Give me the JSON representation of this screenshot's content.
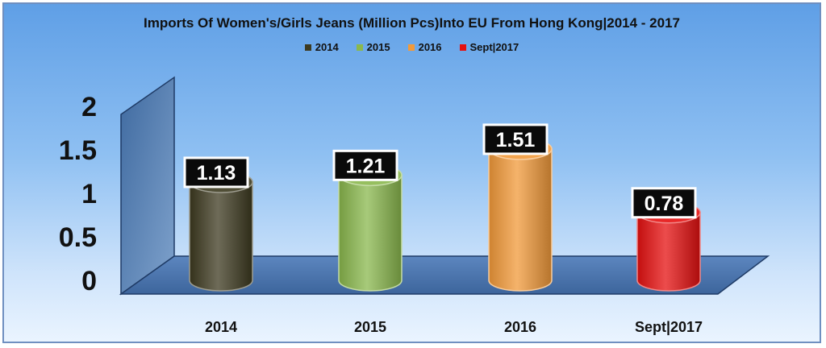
{
  "chart_data": {
    "type": "bar",
    "title": "Imports Of Women's/Girls Jeans (Million Pcs)Into EU From Hong Kong|2014 - 2017",
    "categories": [
      "2014",
      "2015",
      "2016",
      "Sept|2017"
    ],
    "values": [
      1.13,
      1.21,
      1.51,
      0.78
    ],
    "data_labels": [
      "1.13",
      "1.21",
      "1.51",
      "0.78"
    ],
    "colors": [
      "#3d3a20",
      "#8ab84d",
      "#f29a3a",
      "#e51010"
    ],
    "legend": [
      {
        "label": "2014",
        "color": "#3d3a20"
      },
      {
        "label": "2015",
        "color": "#8ab84d"
      },
      {
        "label": "2016",
        "color": "#f29a3a"
      },
      {
        "label": "Sept|2017",
        "color": "#e51010"
      }
    ],
    "legend_position": "top",
    "y_ticks": [
      "0",
      "0.5",
      "1",
      "1.5",
      "2"
    ],
    "ylim": [
      0,
      2
    ],
    "grid": false,
    "style": "3d-cylinder"
  }
}
